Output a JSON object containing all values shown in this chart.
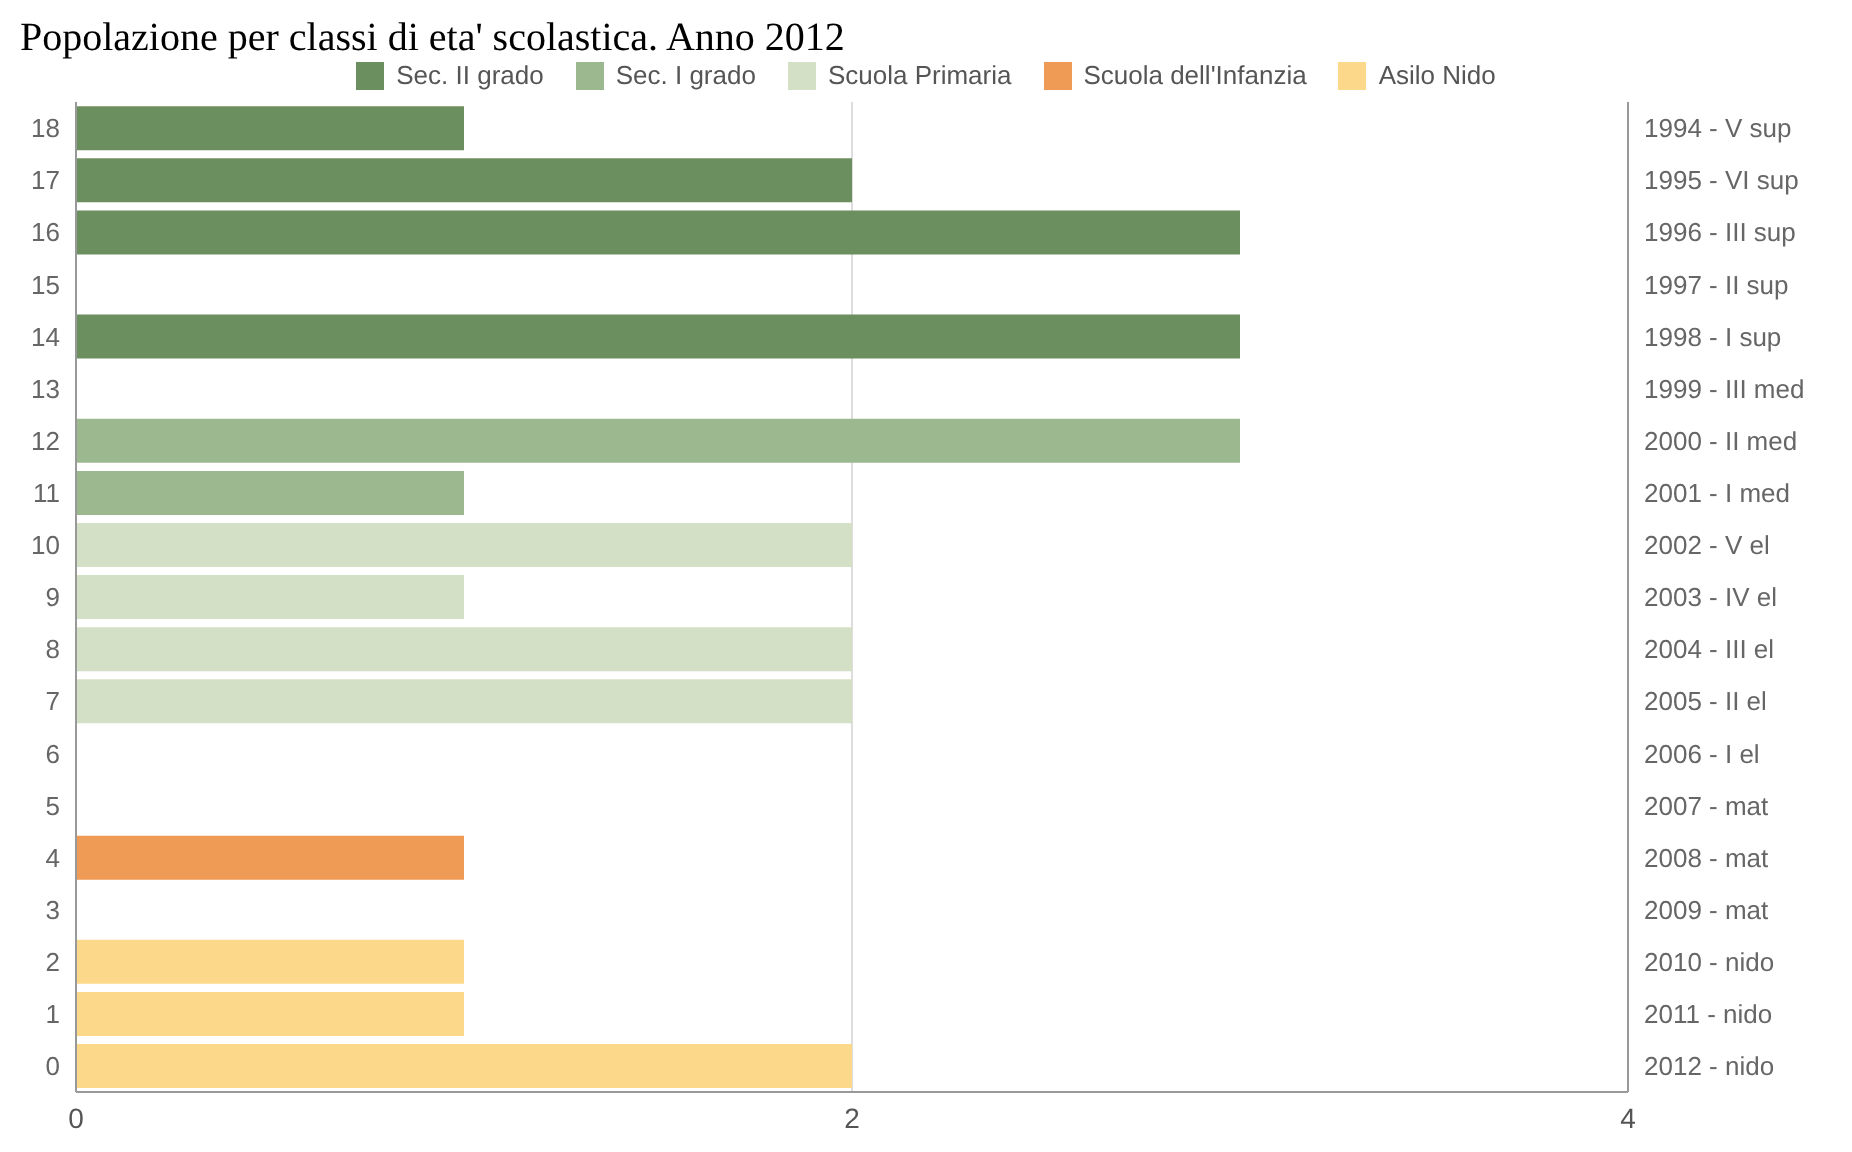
{
  "chart_data": {
    "type": "bar",
    "orientation": "horizontal",
    "stacked": true,
    "title": "Popolazione per classi di eta' scolastica. Anno 2012",
    "categories": [
      "18",
      "17",
      "16",
      "15",
      "14",
      "13",
      "12",
      "11",
      "10",
      "9",
      "8",
      "7",
      "6",
      "5",
      "4",
      "3",
      "2",
      "1",
      "0"
    ],
    "y2_categories": [
      "1994 - V sup",
      "1995 - VI sup",
      "1996 - III sup",
      "1997 - II sup",
      "1998 - I sup",
      "1999 - III med",
      "2000 - II med",
      "2001 - I med",
      "2002 - V el",
      "2003 - IV el",
      "2004 - III el",
      "2005 - II el",
      "2006 - I el",
      "2007 - mat",
      "2008 - mat",
      "2009 - mat",
      "2010 - nido",
      "2011 - nido",
      "2012 - nido"
    ],
    "series": [
      {
        "name": "Sec. II grado",
        "color": "#6b8f5e",
        "values": [
          1,
          2,
          3,
          0,
          3,
          null,
          null,
          null,
          null,
          null,
          null,
          null,
          null,
          null,
          null,
          null,
          null,
          null,
          null
        ]
      },
      {
        "name": "Sec. I grado",
        "color": "#9cb88e",
        "values": [
          null,
          null,
          null,
          null,
          null,
          0,
          3,
          1,
          null,
          null,
          null,
          null,
          null,
          null,
          null,
          null,
          null,
          null,
          null
        ]
      },
      {
        "name": "Scuola Primaria",
        "color": "#d3e0c5",
        "values": [
          null,
          null,
          null,
          null,
          null,
          null,
          null,
          null,
          2,
          1,
          2,
          2,
          0,
          null,
          null,
          null,
          null,
          null,
          null
        ]
      },
      {
        "name": "Scuola dell'Infanzia",
        "color": "#ef9a55",
        "values": [
          null,
          null,
          null,
          null,
          null,
          null,
          null,
          null,
          null,
          null,
          null,
          null,
          null,
          0,
          1,
          0,
          null,
          null,
          null
        ]
      },
      {
        "name": "Asilo Nido",
        "color": "#fcd98a",
        "values": [
          null,
          null,
          null,
          null,
          null,
          null,
          null,
          null,
          null,
          null,
          null,
          null,
          null,
          null,
          null,
          null,
          1,
          1,
          2
        ]
      }
    ],
    "xlim": [
      0,
      4
    ],
    "xticks": [
      0,
      2,
      4
    ],
    "grid": "x",
    "legend": "top"
  }
}
